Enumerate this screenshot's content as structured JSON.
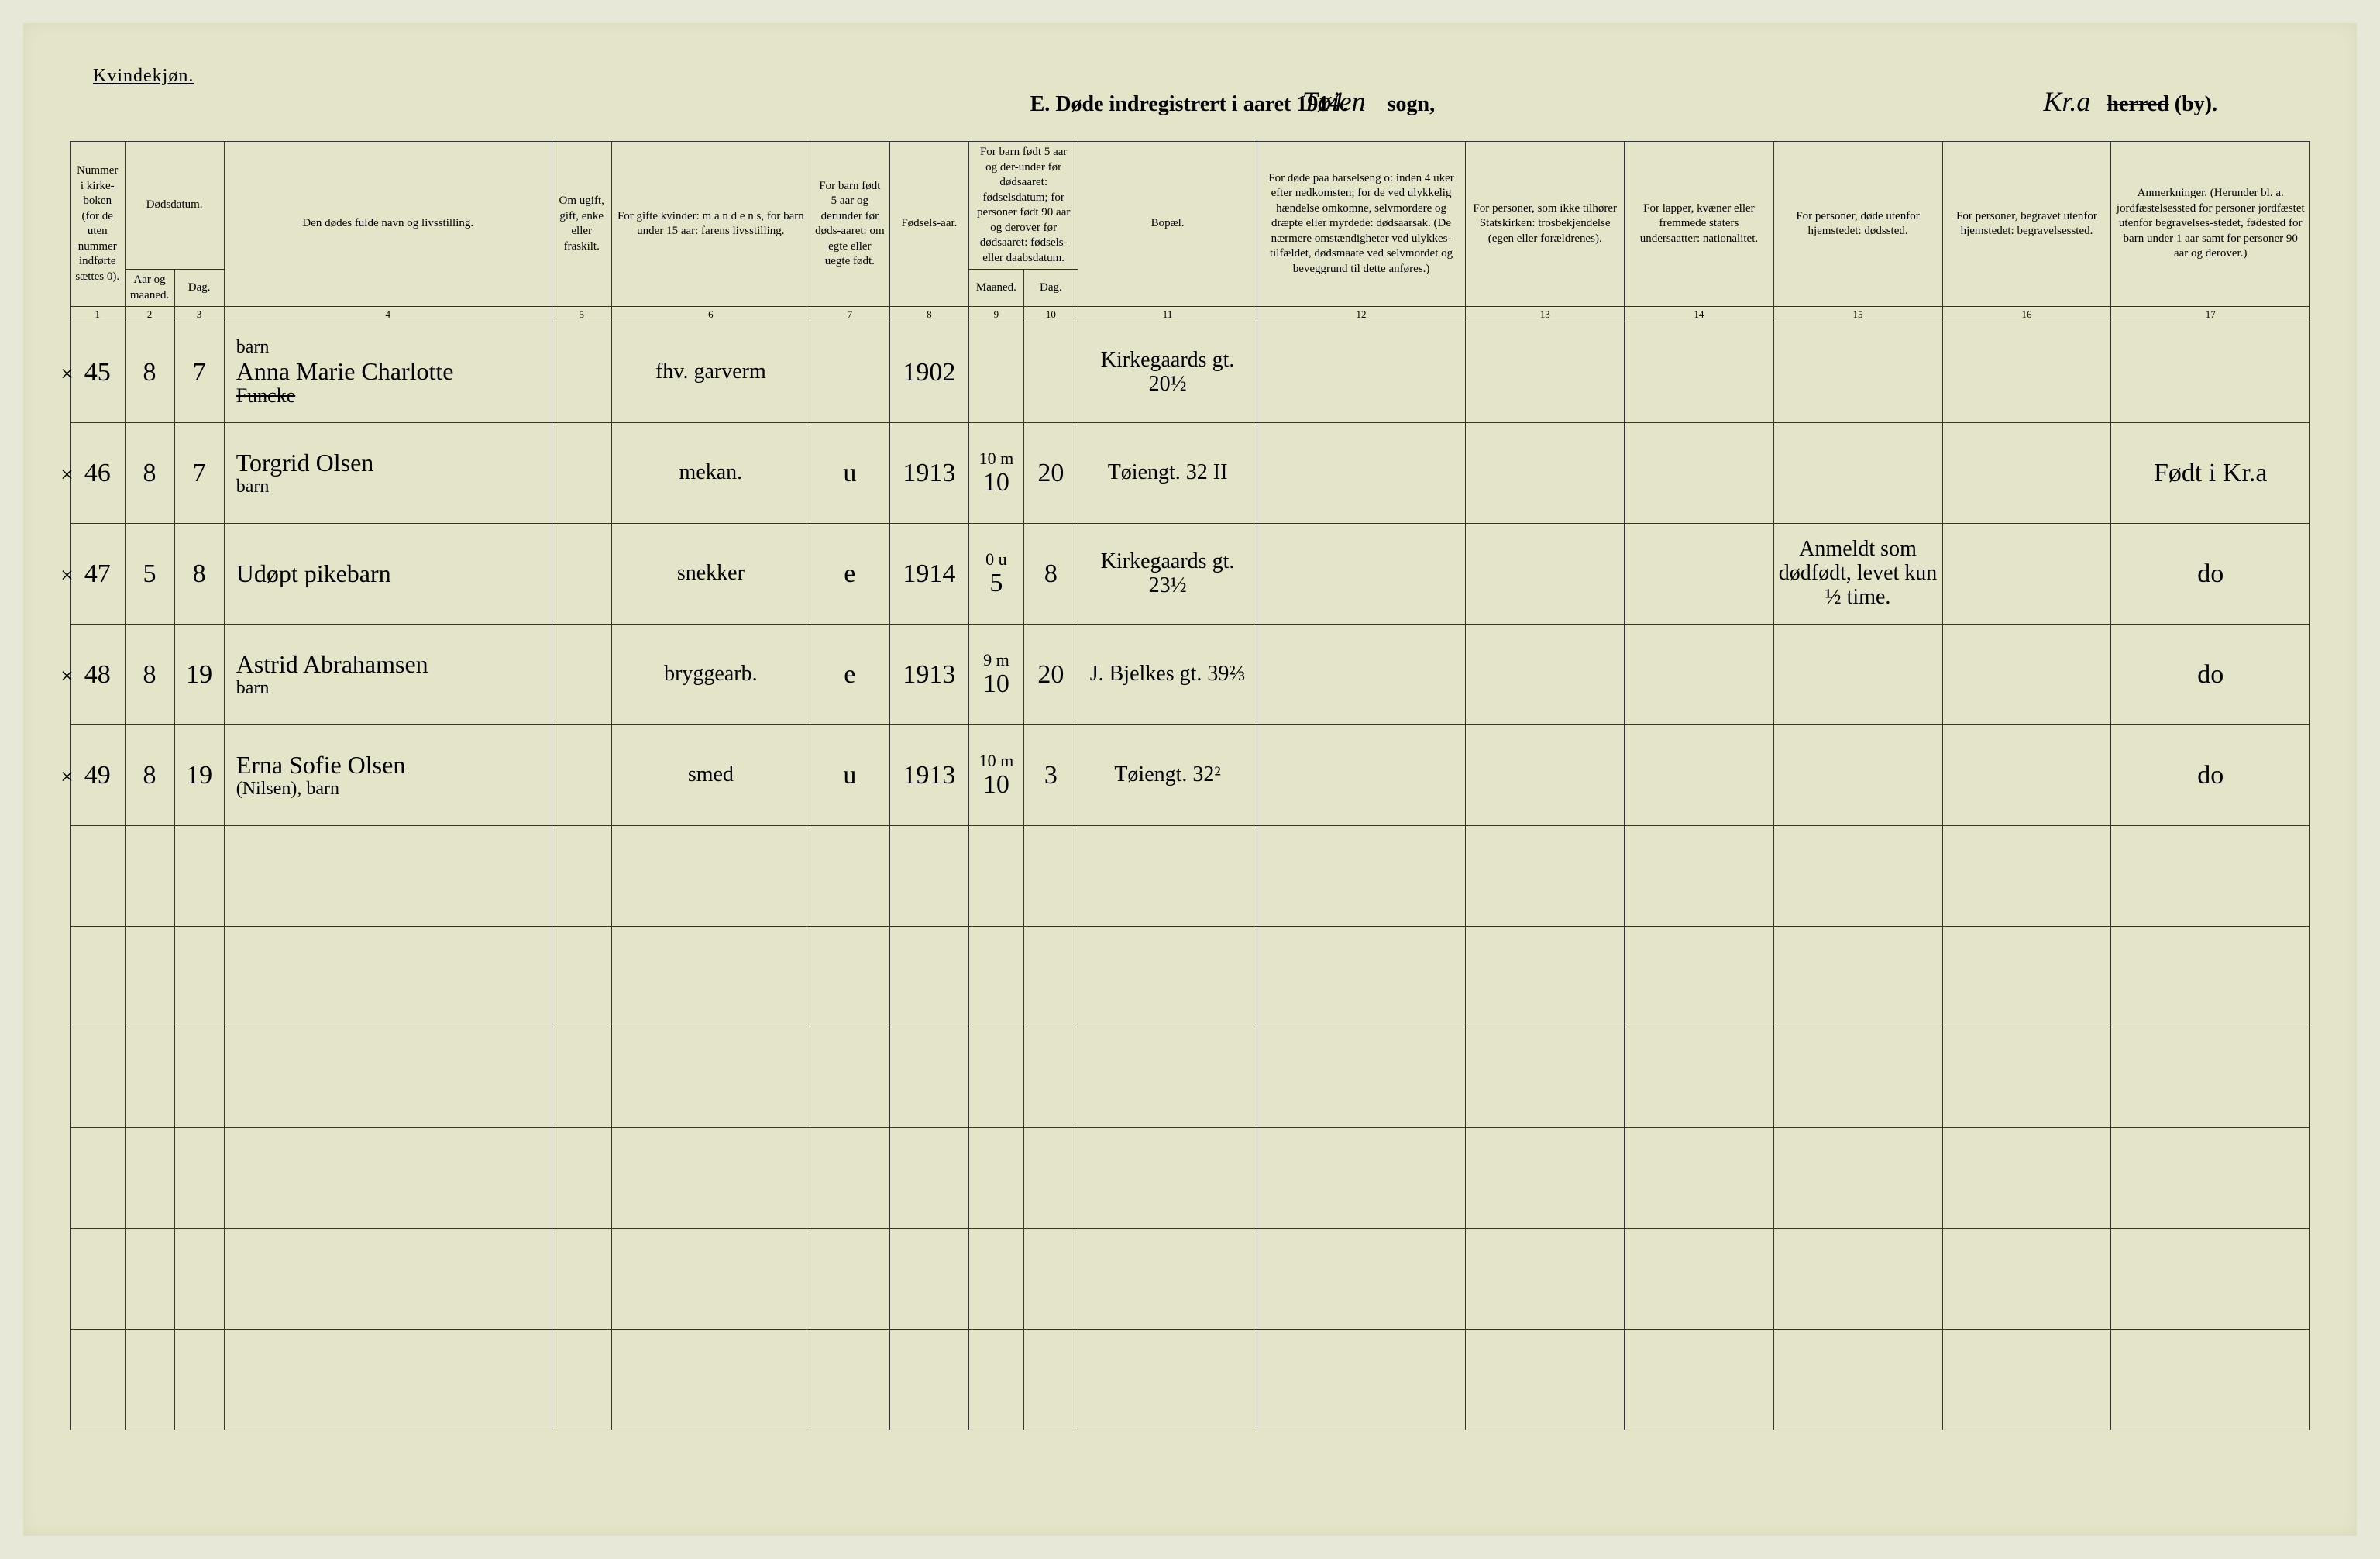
{
  "gender_label": "Kvindekjøn.",
  "title": {
    "prefix": "E.",
    "main": "Døde indregistrert i aaret 191",
    "year_hand": "4.",
    "sogn_hand": "Tøien",
    "sogn_label": "sogn,",
    "herred_hand": "Kr.a",
    "herred_label_strike": "herred",
    "herred_label": "(by)."
  },
  "headers": {
    "c1": "Nummer i kirke-boken (for de uten nummer indførte sættes 0).",
    "c2_group": "Dødsdatum.",
    "c2": "Aar og maaned.",
    "c3": "Dag.",
    "c4": "Den dødes fulde navn og livsstilling.",
    "c5": "Om ugift, gift, enke eller fraskilt.",
    "c6": "For gifte kvinder: m a n d e n s, for barn under 15 aar: farens livsstilling.",
    "c7": "For barn født 5 aar og derunder før døds-aaret: om egte eller uegte født.",
    "c8": "Fødsels-aar.",
    "c9_group": "For barn født 5 aar og der-under før dødsaaret: fødselsdatum; for personer født 90 aar og derover før dødsaaret: fødsels- eller daabsdatum.",
    "c9": "Maaned.",
    "c10": "Dag.",
    "c11": "Bopæl.",
    "c12": "For døde paa barselseng o: inden 4 uker efter nedkomsten; for de ved ulykkelig hændelse omkomne, selvmordere og dræpte eller myrdede: dødsaarsak. (De nærmere omstændigheter ved ulykkes-tilfældet, dødsmaate ved selvmordet og beveggrund til dette anføres.)",
    "c13": "For personer, som ikke tilhører Statskirken: trosbekjendelse (egen eller forældrenes).",
    "c14": "For lapper, kvæner eller fremmede staters undersaatter: nationalitet.",
    "c15": "For personer, døde utenfor hjemstedet: dødssted.",
    "c16": "For personer, begravet utenfor hjemstedet: begravelsessted.",
    "c17": "Anmerkninger. (Herunder bl. a. jordfæstelsessted for personer jordfæstet utenfor begravelses-stedet, fødested for barn under 1 aar samt for personer 90 aar og derover.)"
  },
  "colnums": [
    "1",
    "2",
    "3",
    "4",
    "5",
    "6",
    "7",
    "8",
    "9",
    "10",
    "11",
    "12",
    "13",
    "14",
    "15",
    "16",
    "17"
  ],
  "col_widths": {
    "c1": "55px",
    "c2": "50px",
    "c3": "50px",
    "c4": "330px",
    "c5": "60px",
    "c6": "200px",
    "c7": "80px",
    "c8": "80px",
    "c9": "55px",
    "c10": "55px",
    "c11": "180px",
    "c12": "210px",
    "c13": "160px",
    "c14": "150px",
    "c15": "170px",
    "c16": "170px",
    "c17": "200px"
  },
  "rows": [
    {
      "margin": "×",
      "num": "45",
      "month": "8",
      "day": "7",
      "name_top": "barn",
      "name": "Anna Marie Charlotte",
      "name_strike": "Funcke",
      "c5": "",
      "c6": "fhv. garverm",
      "c7": "",
      "c8": "1902",
      "c9": "",
      "c10": "",
      "c11": "Kirkegaards gt. 20½",
      "c17": ""
    },
    {
      "margin": "×",
      "num": "46",
      "month": "8",
      "day": "7",
      "name_top": "",
      "name": "Torgrid Olsen",
      "name_sub": "barn",
      "c5": "",
      "c6": "mekan.",
      "c7": "u",
      "c8": "1913",
      "c9_top": "10 m",
      "c9": "10",
      "c10": "20",
      "c11": "Tøiengt. 32 II",
      "c17": "Født i Kr.a"
    },
    {
      "margin": "×",
      "num": "47",
      "month": "5",
      "day": "8",
      "name_top": "",
      "name": "Udøpt pikebarn",
      "name_sub": "",
      "c5": "",
      "c6": "snekker",
      "c7": "e",
      "c8": "1914",
      "c9_top": "0 u",
      "c9": "5",
      "c10": "8",
      "c11": "Kirkegaards gt. 23½",
      "c15": "Anmeldt som dødfødt, levet kun ½ time.",
      "c17": "do"
    },
    {
      "margin": "×",
      "num": "48",
      "month": "8",
      "day": "19",
      "name_top": "",
      "name": "Astrid Abrahamsen",
      "name_sub": "barn",
      "c5": "",
      "c6": "bryggearb.",
      "c7": "e",
      "c8": "1913",
      "c9_top": "9 m",
      "c9": "10",
      "c10": "20",
      "c11": "J. Bjelkes gt. 39⅔",
      "c17": "do"
    },
    {
      "margin": "×",
      "num": "49",
      "month": "8",
      "day": "19",
      "name_top": "",
      "name": "Erna Sofie Olsen",
      "name_sub": "(Nilsen), barn",
      "c5": "",
      "c6": "smed",
      "c7": "u",
      "c8": "1913",
      "c9_top": "10 m",
      "c9": "10",
      "c10": "3",
      "c11": "Tøiengt. 32²",
      "c17": "do"
    }
  ],
  "empty_rows": 6,
  "colors": {
    "page_bg": "#e4e4c8",
    "border": "#333333",
    "handwriting": "#1a1a1a"
  }
}
